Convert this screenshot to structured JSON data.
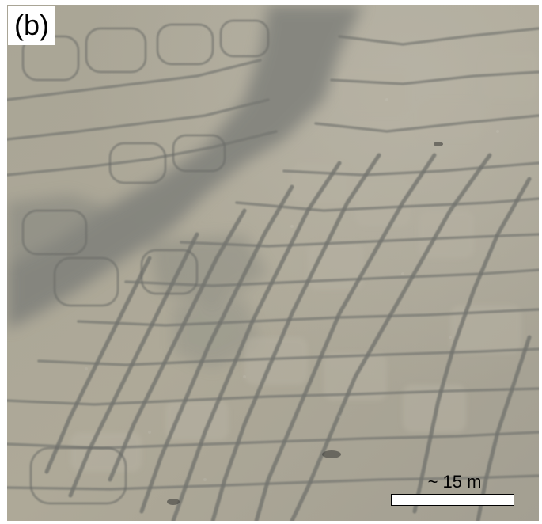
{
  "figure": {
    "panel_label": "(b)",
    "scale_bar_label": "~ 15 m",
    "description_colors": {
      "ground": "#a8a395",
      "dark_wet_band": "#7c7d77",
      "trough": "#6f706b"
    }
  }
}
